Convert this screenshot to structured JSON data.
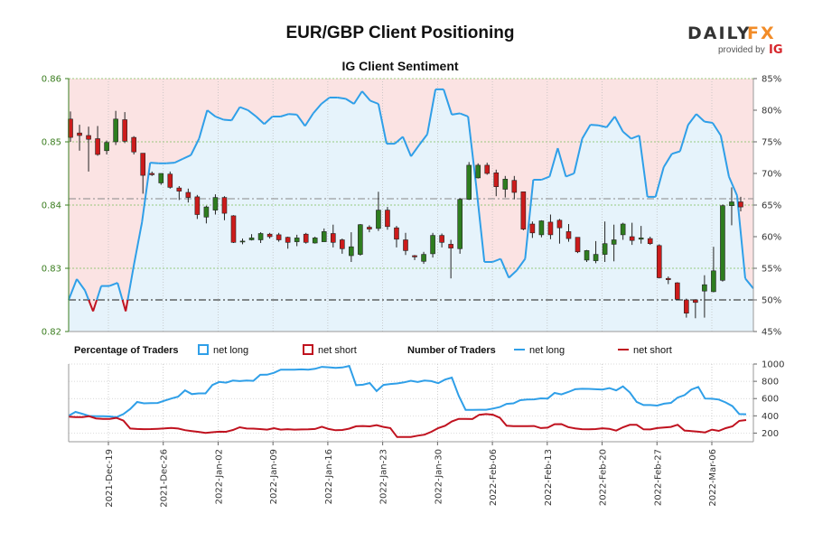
{
  "header": {
    "title": "EUR/GBP Client Positioning",
    "logo_text_left": "DAILY",
    "logo_text_right": "FX",
    "logo_tagline": "provided by",
    "logo_brand": "IG"
  },
  "legend": {
    "percentage_label": "Percentage of Traders",
    "number_label": "Number of Traders",
    "net_long": "net long",
    "net_short": "net short"
  },
  "colors": {
    "long": "#2f9fe8",
    "short": "#c0121f",
    "long_fill": "#e6f3fb",
    "short_fill": "#fbe3e3",
    "candle_up": "#2e7d1f",
    "candle_down": "#cc1b1b",
    "price_axis": "#3a7d1f",
    "brand_orange": "#f28c28",
    "brand_red": "#d6262c"
  },
  "chart_data": [
    {
      "type": "candlestick",
      "title": "IG Client Sentiment",
      "subtitle": "",
      "y_left_ticks": [
        "0.86",
        "0.85",
        "0.84",
        "0.83",
        "0.82"
      ],
      "y_left_range": [
        0.82,
        0.86
      ],
      "y_right_ticks": [
        "85%",
        "80%",
        "75%",
        "70%",
        "65%",
        "60%",
        "55%",
        "50%",
        "45%"
      ],
      "y_right_range": [
        45,
        85
      ],
      "reference_lines": [
        50,
        0.841
      ],
      "x_ticks": [
        "2021-Dec-19",
        "2021-Dec-26",
        "2022-Jan-02",
        "2022-Jan-09",
        "2022-Jan-16",
        "2022-Jan-23",
        "2022-Jan-30",
        "2022-Feb-06",
        "2022-Feb-13",
        "2022-Feb-20",
        "2022-Feb-27",
        "2022-Mar-06"
      ],
      "candles": [
        [
          0.8536,
          0.8507,
          0.8548,
          0.85
        ],
        [
          0.8514,
          0.851,
          0.8527,
          0.8486
        ],
        [
          0.851,
          0.8504,
          0.8524,
          0.8453
        ],
        [
          0.8505,
          0.848,
          0.8525,
          0.8478
        ],
        [
          0.8486,
          0.8499,
          0.8502,
          0.848
        ],
        [
          0.85,
          0.8536,
          0.8549,
          0.8495
        ],
        [
          0.8535,
          0.8501,
          0.8547,
          0.8498
        ],
        [
          0.8507,
          0.8484,
          0.8509,
          0.848
        ],
        [
          0.8482,
          0.8447,
          0.8482,
          0.8418
        ],
        [
          0.845,
          0.8448,
          0.8453,
          0.8446
        ],
        [
          0.8435,
          0.845,
          0.845,
          0.8432
        ],
        [
          0.8449,
          0.8428,
          0.8453,
          0.8426
        ],
        [
          0.8427,
          0.8422,
          0.843,
          0.8408
        ],
        [
          0.842,
          0.8412,
          0.8426,
          0.8404
        ],
        [
          0.8413,
          0.8385,
          0.8416,
          0.8378
        ],
        [
          0.8381,
          0.8397,
          0.8399,
          0.8371
        ],
        [
          0.8392,
          0.8412,
          0.8417,
          0.8385
        ],
        [
          0.8412,
          0.8387,
          0.8414,
          0.8376
        ],
        [
          0.8383,
          0.8341,
          0.8384,
          0.834
        ],
        [
          0.8343,
          0.8343,
          0.8347,
          0.8338
        ],
        [
          0.8345,
          0.8348,
          0.8354,
          0.8344
        ],
        [
          0.8345,
          0.8355,
          0.8357,
          0.834
        ],
        [
          0.8354,
          0.835,
          0.8356,
          0.8347
        ],
        [
          0.8353,
          0.8345,
          0.8356,
          0.8342
        ],
        [
          0.8349,
          0.8341,
          0.835,
          0.8331
        ],
        [
          0.8342,
          0.8348,
          0.8353,
          0.8335
        ],
        [
          0.8354,
          0.8341,
          0.8356,
          0.8339
        ],
        [
          0.834,
          0.8348,
          0.835,
          0.8339
        ],
        [
          0.8342,
          0.8358,
          0.8363,
          0.8342
        ],
        [
          0.8355,
          0.8341,
          0.8369,
          0.8333
        ],
        [
          0.8345,
          0.8331,
          0.8347,
          0.8323
        ],
        [
          0.832,
          0.8334,
          0.8357,
          0.831
        ],
        [
          0.8322,
          0.8369,
          0.837,
          0.832
        ],
        [
          0.8365,
          0.8362,
          0.8368,
          0.8357
        ],
        [
          0.8363,
          0.8392,
          0.8421,
          0.8359
        ],
        [
          0.8392,
          0.8366,
          0.8397,
          0.8361
        ],
        [
          0.8364,
          0.8346,
          0.8367,
          0.8333
        ],
        [
          0.8345,
          0.8328,
          0.8356,
          0.8321
        ],
        [
          0.832,
          0.8318,
          0.8321,
          0.8313
        ],
        [
          0.8311,
          0.8322,
          0.8326,
          0.8307
        ],
        [
          0.8323,
          0.8352,
          0.8356,
          0.8317
        ],
        [
          0.8352,
          0.8341,
          0.8355,
          0.8333
        ],
        [
          0.8338,
          0.8332,
          0.8345,
          0.8284
        ],
        [
          0.8331,
          0.8409,
          0.8411,
          0.8323
        ],
        [
          0.8409,
          0.8463,
          0.8468,
          0.8408
        ],
        [
          0.8443,
          0.8463,
          0.8466,
          0.8442
        ],
        [
          0.8463,
          0.845,
          0.8467,
          0.8448
        ],
        [
          0.8451,
          0.8429,
          0.8456,
          0.8414
        ],
        [
          0.8425,
          0.8441,
          0.8446,
          0.8412
        ],
        [
          0.8439,
          0.842,
          0.8446,
          0.8409
        ],
        [
          0.8421,
          0.8362,
          0.8421,
          0.836
        ],
        [
          0.837,
          0.8356,
          0.8374,
          0.8348
        ],
        [
          0.8353,
          0.8375,
          0.8376,
          0.8349
        ],
        [
          0.8373,
          0.8353,
          0.8385,
          0.8346
        ],
        [
          0.8376,
          0.8364,
          0.8378,
          0.8339
        ],
        [
          0.8358,
          0.8347,
          0.837,
          0.8342
        ],
        [
          0.8349,
          0.8326,
          0.8349,
          0.8324
        ],
        [
          0.8313,
          0.8328,
          0.8329,
          0.831
        ],
        [
          0.8312,
          0.8322,
          0.8343,
          0.8308
        ],
        [
          0.8322,
          0.8339,
          0.8374,
          0.831
        ],
        [
          0.8338,
          0.8345,
          0.8369,
          0.8311
        ],
        [
          0.8353,
          0.837,
          0.8372,
          0.8345
        ],
        [
          0.835,
          0.8344,
          0.8372,
          0.8337
        ],
        [
          0.8346,
          0.8348,
          0.8367,
          0.8339
        ],
        [
          0.8347,
          0.8339,
          0.835,
          0.8337
        ],
        [
          0.8336,
          0.8285,
          0.8338,
          0.8284
        ],
        [
          0.8284,
          0.8282,
          0.8287,
          0.8275
        ],
        [
          0.8277,
          0.8251,
          0.8278,
          0.825
        ],
        [
          0.825,
          0.8229,
          0.8252,
          0.8222
        ],
        [
          0.825,
          0.8246,
          0.8251,
          0.8221
        ],
        [
          0.8264,
          0.8274,
          0.8289,
          0.8222
        ],
        [
          0.8263,
          0.8296,
          0.8334,
          0.8262
        ],
        [
          0.8281,
          0.8399,
          0.8401,
          0.8279
        ],
        [
          0.8399,
          0.8405,
          0.8428,
          0.8368
        ],
        [
          0.8405,
          0.8397,
          0.8413,
          0.839
        ]
      ],
      "long_pct": [
        50.0,
        53.3,
        51.5,
        48.2,
        52.2,
        52.2,
        52.7,
        48.2,
        55.5,
        62.3,
        71.7,
        71.6,
        71.6,
        71.7,
        72.3,
        72.9,
        75.5,
        80.0,
        79.0,
        78.5,
        78.4,
        80.5,
        80.0,
        79.0,
        77.8,
        79.0,
        79.0,
        79.4,
        79.3,
        77.5,
        79.5,
        81.0,
        82.0,
        82.0,
        81.8,
        81.0,
        83.0,
        81.5,
        81.0,
        74.7,
        74.7,
        75.8,
        72.7,
        74.5,
        76.2,
        83.3,
        83.3,
        79.3,
        79.5,
        79.0,
        68.0,
        56.0,
        56.0,
        56.5,
        53.5,
        54.7,
        56.5,
        69.0,
        69.0,
        69.5,
        74.0,
        69.5,
        70.0,
        75.5,
        77.7,
        77.6,
        77.3,
        79.0,
        76.6,
        75.5,
        76.0,
        66.3,
        66.3,
        71.0,
        73.1,
        73.5,
        77.7,
        79.4,
        78.2,
        78.0,
        76.0,
        69.5,
        66.5,
        53.4,
        51.8
      ]
    },
    {
      "type": "line",
      "title": "",
      "y_ticks": [
        "1000",
        "800",
        "600",
        "400",
        "200"
      ],
      "y_range": [
        100,
        1000
      ],
      "series": [
        {
          "name": "net long",
          "values": [
            400,
            445,
            423,
            398,
            395,
            395,
            393,
            385,
            420,
            480,
            560,
            545,
            548,
            549,
            575,
            600,
            622,
            695,
            651,
            660,
            660,
            757,
            793,
            784,
            808,
            802,
            810,
            805,
            875,
            877,
            898,
            935,
            935,
            935,
            938,
            935,
            945,
            968,
            962,
            955,
            960,
            978,
            755,
            760,
            780,
            687,
            758,
            769,
            775,
            788,
            806,
            792,
            808,
            802,
            778,
            820,
            843,
            633,
            469,
            469,
            470,
            470,
            484,
            502,
            538,
            545,
            581,
            589,
            591,
            602,
            600,
            665,
            648,
            676,
            708,
            713,
            712,
            708,
            705,
            722,
            695,
            742,
            671,
            562,
            525,
            525,
            519,
            541,
            550,
            612,
            640,
            705,
            735,
            600,
            598,
            589,
            555,
            512,
            420,
            418
          ]
        },
        {
          "name": "net short",
          "values": [
            390,
            385,
            385,
            395,
            370,
            365,
            365,
            376,
            345,
            253,
            248,
            245,
            247,
            250,
            254,
            260,
            253,
            234,
            223,
            214,
            203,
            210,
            216,
            215,
            236,
            267,
            253,
            252,
            247,
            240,
            257,
            240,
            245,
            240,
            242,
            243,
            248,
            274,
            248,
            233,
            236,
            252,
            279,
            282,
            278,
            293,
            272,
            258,
            154,
            154,
            155,
            170,
            182,
            215,
            258,
            285,
            335,
            365,
            365,
            363,
            412,
            420,
            413,
            378,
            285,
            280,
            281,
            281,
            282,
            258,
            263,
            303,
            304,
            270,
            255,
            245,
            244,
            247,
            256,
            250,
            229,
            267,
            296,
            296,
            243,
            242,
            258,
            264,
            272,
            297,
            230,
            224,
            216,
            208,
            240,
            226,
            257,
            278,
            342,
            351
          ]
        }
      ]
    }
  ]
}
